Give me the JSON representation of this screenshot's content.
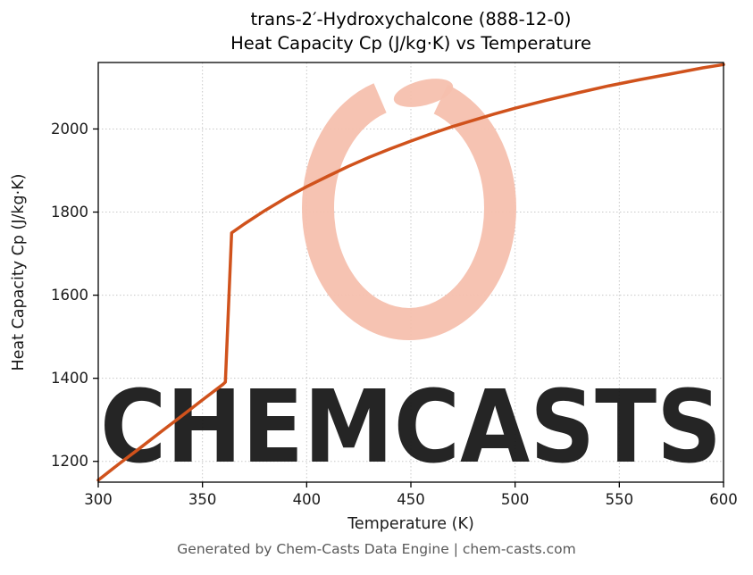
{
  "title": {
    "line1": "trans-2′-Hydroxychalcone (888-12-0)",
    "line2": "Heat Capacity Cp (J/kg·K) vs Temperature"
  },
  "footer": "Generated by Chem-Casts Data Engine | chem-casts.com",
  "watermark": {
    "text": "CHEMCASTS",
    "logo": "brush-ring-logo",
    "color": "#f6c0ae"
  },
  "chart_data": {
    "type": "line",
    "title": "trans-2′-Hydroxychalcone (888-12-0) Heat Capacity Cp (J/kg·K) vs Temperature",
    "xlabel": "Temperature (K)",
    "ylabel": "Heat Capacity Cp (J/kg·K)",
    "xlim": [
      300,
      600
    ],
    "ylim": [
      1150,
      2160
    ],
    "xticks": [
      300,
      350,
      400,
      450,
      500,
      550,
      600
    ],
    "yticks": [
      1200,
      1400,
      1600,
      1800,
      2000
    ],
    "grid": true,
    "grid_style": "dotted",
    "grid_color": "#c8c8c8",
    "legend": "none",
    "series": [
      {
        "name": "Heat Capacity Cp",
        "color": "#d0521c",
        "width": 3.5,
        "points": [
          [
            300,
            1155
          ],
          [
            310,
            1194
          ],
          [
            320,
            1232
          ],
          [
            330,
            1271
          ],
          [
            340,
            1309
          ],
          [
            350,
            1348
          ],
          [
            360,
            1386
          ],
          [
            361,
            1391
          ],
          [
            364,
            1750
          ],
          [
            370,
            1771
          ],
          [
            380,
            1804
          ],
          [
            390,
            1834
          ],
          [
            400,
            1861
          ],
          [
            410,
            1886
          ],
          [
            420,
            1910
          ],
          [
            430,
            1932
          ],
          [
            440,
            1952
          ],
          [
            450,
            1971
          ],
          [
            460,
            1989
          ],
          [
            470,
            2006
          ],
          [
            480,
            2021
          ],
          [
            490,
            2036
          ],
          [
            500,
            2050
          ],
          [
            515,
            2069
          ],
          [
            530,
            2087
          ],
          [
            545,
            2104
          ],
          [
            560,
            2119
          ],
          [
            575,
            2133
          ],
          [
            590,
            2147
          ],
          [
            600,
            2155
          ]
        ]
      }
    ]
  }
}
